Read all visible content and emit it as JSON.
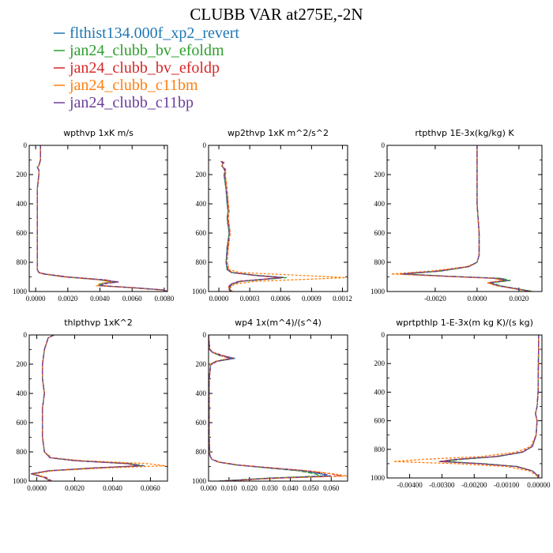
{
  "title": "CLUBB VAR at275E,-2N",
  "legend": [
    {
      "name": "flthist134.000f_xp2_revert",
      "color": "#1f77b4"
    },
    {
      "name": "jan24_clubb_bv_efoldm",
      "color": "#2ca02c"
    },
    {
      "name": "jan24_clubb_bv_efoldp",
      "color": "#d62728"
    },
    {
      "name": "jan24_clubb_c11bm",
      "color": "#ff7f0e"
    },
    {
      "name": "jan24_clubb_c11bp",
      "color": "#6a3d9a"
    }
  ],
  "chart_data": [
    {
      "type": "line",
      "title": "wpthvp   1xK m/s",
      "xlim": [
        -0.0004,
        0.0082
      ],
      "ylim": [
        1000,
        0
      ],
      "xticks": [
        "0.0000",
        "0.0020",
        "0.0040",
        "0.0060",
        "0.0080"
      ],
      "xtickvals": [
        0,
        0.002,
        0.004,
        0.006,
        0.008
      ],
      "yticks": [
        "0",
        "200",
        "400",
        "600",
        "800",
        "1000"
      ],
      "y": [
        0,
        100,
        140,
        150,
        170,
        200,
        300,
        500,
        700,
        820,
        850,
        870,
        880,
        900,
        920,
        935,
        945,
        960,
        975,
        990,
        1000
      ],
      "series": [
        {
          "name": "flthist134.000f_xp2_revert",
          "values": [
            0.0003,
            0.0003,
            0.0002,
            0.0001,
            0.0002,
            0.0002,
            0.0001,
            0.0001,
            0.0001,
            0.0001,
            0.0001,
            0.0002,
            0.0005,
            0.0019,
            0.0041,
            0.0049,
            0.0042,
            0.004,
            0.0062,
            0.008,
            0.0081
          ]
        },
        {
          "name": "jan24_clubb_bv_efoldm",
          "values": [
            0.0003,
            0.0003,
            0.0002,
            0.0001,
            0.0002,
            0.0002,
            0.0001,
            0.0001,
            0.0001,
            0.0001,
            0.0001,
            0.0002,
            0.0005,
            0.0018,
            0.004,
            0.0048,
            0.0041,
            0.0039,
            0.0061,
            0.0079,
            0.008
          ]
        },
        {
          "name": "jan24_clubb_bv_efoldp",
          "values": [
            0.0003,
            0.0003,
            0.0002,
            0.0001,
            0.0002,
            0.0002,
            0.0001,
            0.0001,
            0.0001,
            0.0001,
            0.0001,
            0.0002,
            0.0006,
            0.002,
            0.0043,
            0.0051,
            0.0044,
            0.0041,
            0.0063,
            0.008,
            0.0082
          ]
        },
        {
          "name": "jan24_clubb_c11bm",
          "values": [
            0.0003,
            0.0003,
            0.0002,
            0.0001,
            0.0002,
            0.0002,
            0.0001,
            0.0001,
            0.0001,
            0.0001,
            0.0001,
            0.0002,
            0.0004,
            0.0017,
            0.0039,
            0.0047,
            0.004,
            0.0038,
            0.006,
            0.0078,
            0.0079
          ]
        },
        {
          "name": "jan24_clubb_c11bp",
          "values": [
            0.0003,
            0.0003,
            0.0002,
            0.0001,
            0.0002,
            0.0002,
            0.0001,
            0.0001,
            0.0001,
            0.0001,
            0.0001,
            0.0002,
            0.0005,
            0.0019,
            0.0042,
            0.0052,
            0.0043,
            0.004,
            0.0062,
            0.008,
            0.0081
          ]
        }
      ]
    },
    {
      "type": "line",
      "title": "wp2thvp   1xK m^2/s^2",
      "xlim": [
        -0.0001,
        0.00125
      ],
      "ylim": [
        1000,
        0
      ],
      "xticks": [
        "0.0000",
        "0.0003",
        "0.0006",
        "0.0009",
        "0.0012"
      ],
      "xtickvals": [
        0,
        0.0003,
        0.0006,
        0.0009,
        0.0012
      ],
      "yticks": [
        "0",
        "200",
        "400",
        "600",
        "800",
        "1000"
      ],
      "y": [
        110,
        120,
        140,
        160,
        180,
        200,
        250,
        300,
        400,
        450,
        500,
        550,
        600,
        650,
        700,
        800,
        850,
        870,
        890,
        905,
        915,
        930,
        950,
        975,
        1000
      ],
      "series": [
        {
          "name": "flthist134.000f_xp2_revert",
          "values": [
            2e-05,
            4e-05,
            3e-05,
            5e-05,
            6e-05,
            5e-05,
            6e-05,
            7e-05,
            8e-05,
            9e-05,
            8e-05,
            9e-05,
            0.0001,
            9e-05,
            8e-05,
            7e-05,
            8e-05,
            0.00012,
            0.00035,
            0.00062,
            0.00045,
            0.0002,
            0.00012,
            0.0001,
            0.00012
          ]
        },
        {
          "name": "jan24_clubb_bv_efoldm",
          "values": [
            2e-05,
            4e-05,
            3e-05,
            5e-05,
            6e-05,
            5e-05,
            6e-05,
            7e-05,
            8e-05,
            9e-05,
            8e-05,
            9e-05,
            0.0001,
            9e-05,
            8e-05,
            7e-05,
            8e-05,
            0.00013,
            0.00038,
            0.00066,
            0.00048,
            0.00022,
            0.00013,
            0.0001,
            0.00012
          ]
        },
        {
          "name": "jan24_clubb_bv_efoldp",
          "values": [
            3e-05,
            5e-05,
            3e-05,
            6e-05,
            7e-05,
            6e-05,
            7e-05,
            8e-05,
            9e-05,
            0.0001,
            9e-05,
            0.0001,
            0.00011,
            0.0001,
            9e-05,
            8e-05,
            9e-05,
            0.00012,
            0.00034,
            0.0006,
            0.00044,
            0.00019,
            0.00011,
            9e-05,
            0.00011
          ]
        },
        {
          "name": "jan24_clubb_c11bm",
          "values": [
            2e-05,
            4e-05,
            3e-05,
            5e-05,
            6e-05,
            6e-05,
            7e-05,
            8e-05,
            9e-05,
            0.0001,
            9e-05,
            0.0001,
            0.00011,
            0.0001,
            9e-05,
            8e-05,
            0.0001,
            0.0002,
            0.0008,
            0.00123,
            0.0009,
            0.00035,
            0.00015,
            0.00011,
            0.00013
          ]
        },
        {
          "name": "jan24_clubb_c11bp",
          "values": [
            2e-05,
            4e-05,
            3e-05,
            5e-05,
            6e-05,
            5e-05,
            6e-05,
            7e-05,
            8e-05,
            9e-05,
            8e-05,
            9e-05,
            0.0001,
            9e-05,
            8e-05,
            7e-05,
            8e-05,
            0.00012,
            0.00036,
            0.00063,
            0.00046,
            0.00021,
            0.00012,
            0.0001,
            0.00012
          ]
        }
      ]
    },
    {
      "type": "line",
      "title": "rtpthvp   1E-3x(kg/kg) K",
      "xlim": [
        -0.0043,
        0.0031
      ],
      "ylim": [
        1000,
        0
      ],
      "xticks": [
        "-0.0020",
        "0.0000",
        "0.0020"
      ],
      "xtickvals": [
        -0.002,
        0,
        0.002
      ],
      "yticks": [
        "0",
        "200",
        "400",
        "600",
        "800",
        "1000"
      ],
      "y": [
        0,
        200,
        400,
        600,
        750,
        800,
        830,
        860,
        880,
        895,
        910,
        925,
        940,
        960,
        980,
        1000
      ],
      "series": [
        {
          "name": "flthist134.000f_xp2_revert",
          "values": [
            0.0,
            0.0,
            0.0,
            0.0001,
            0.0001,
            0.0,
            -0.0004,
            -0.0018,
            -0.0036,
            -0.0015,
            0.001,
            0.0014,
            0.0006,
            0.001,
            0.0018,
            0.0026
          ]
        },
        {
          "name": "jan24_clubb_bv_efoldm",
          "values": [
            0.0,
            0.0,
            0.0,
            0.0001,
            0.0001,
            0.0,
            -0.0004,
            -0.0017,
            -0.0035,
            -0.0014,
            0.0012,
            0.0016,
            0.0007,
            0.0011,
            0.0019,
            0.0027
          ]
        },
        {
          "name": "jan24_clubb_bv_efoldp",
          "values": [
            0.0,
            0.0,
            0.0,
            0.0001,
            0.0001,
            0.0,
            -0.0004,
            -0.0019,
            -0.0037,
            -0.0016,
            0.0009,
            0.0013,
            0.0005,
            0.001,
            0.0018,
            0.0026
          ]
        },
        {
          "name": "jan24_clubb_c11bm",
          "values": [
            0.0,
            0.0,
            0.0,
            0.0001,
            0.0001,
            0.0,
            -0.0005,
            -0.0022,
            -0.0041,
            -0.0018,
            0.0008,
            0.0012,
            0.0005,
            0.0009,
            0.0017,
            0.0025
          ]
        },
        {
          "name": "jan24_clubb_c11bp",
          "values": [
            0.0,
            0.0,
            0.0,
            0.0001,
            0.0001,
            0.0,
            -0.0004,
            -0.0018,
            -0.0036,
            -0.0015,
            0.0011,
            0.0015,
            0.0006,
            0.001,
            0.0018,
            0.0026
          ]
        }
      ]
    },
    {
      "type": "line",
      "title": "thlpthvp   1xK^2",
      "xlim": [
        -0.0004,
        0.0069
      ],
      "ylim": [
        1000,
        0
      ],
      "xticks": [
        "0.0000",
        "0.0020",
        "0.0040",
        "0.0060"
      ],
      "xtickvals": [
        0,
        0.002,
        0.004,
        0.006
      ],
      "yticks": [
        "0",
        "200",
        "400",
        "600",
        "800",
        "1000"
      ],
      "y": [
        0,
        20,
        100,
        200,
        300,
        400,
        500,
        600,
        700,
        800,
        840,
        860,
        880,
        895,
        910,
        930,
        950,
        975,
        1000
      ],
      "series": [
        {
          "name": "flthist134.000f_xp2_revert",
          "values": [
            0.0009,
            0.0006,
            0.0004,
            0.0003,
            0.0003,
            0.0004,
            0.0003,
            0.0003,
            0.0003,
            0.0004,
            0.0007,
            0.002,
            0.0048,
            0.0055,
            0.003,
            0.0006,
            -0.0003,
            0.0004,
            0.0007
          ]
        },
        {
          "name": "jan24_clubb_bv_efoldm",
          "values": [
            0.0009,
            0.0006,
            0.0004,
            0.0003,
            0.0003,
            0.0004,
            0.0003,
            0.0003,
            0.0003,
            0.0004,
            0.0007,
            0.0021,
            0.0049,
            0.0057,
            0.0031,
            0.0006,
            -0.0002,
            0.0004,
            0.0007
          ]
        },
        {
          "name": "jan24_clubb_bv_efoldp",
          "values": [
            0.0009,
            0.0006,
            0.0004,
            0.0003,
            0.0003,
            0.0004,
            0.0003,
            0.0003,
            0.0003,
            0.0004,
            0.0007,
            0.002,
            0.0047,
            0.0054,
            0.0029,
            0.0006,
            -0.0003,
            0.0005,
            0.0008
          ]
        },
        {
          "name": "jan24_clubb_c11bm",
          "values": [
            0.0009,
            0.0006,
            0.0004,
            0.0003,
            0.0003,
            0.0004,
            0.0003,
            0.0003,
            0.0003,
            0.0004,
            0.0008,
            0.0024,
            0.0058,
            0.0068,
            0.0036,
            0.0008,
            -0.0001,
            0.0004,
            0.0007
          ]
        },
        {
          "name": "jan24_clubb_c11bp",
          "values": [
            0.0009,
            0.0006,
            0.0004,
            0.0003,
            0.0003,
            0.0004,
            0.0003,
            0.0003,
            0.0003,
            0.0004,
            0.0007,
            0.002,
            0.0048,
            0.0056,
            0.003,
            0.0006,
            -0.0003,
            0.0004,
            0.0007
          ]
        }
      ]
    },
    {
      "type": "line",
      "title": "wp4   1x(m^4)/(s^4)",
      "xlim": [
        0,
        0.068
      ],
      "ylim": [
        1000,
        0
      ],
      "xticks": [
        "0.000",
        "0.010",
        "0.020",
        "0.030",
        "0.040",
        "0.050",
        "0.060"
      ],
      "xtickvals": [
        0,
        0.01,
        0.02,
        0.03,
        0.04,
        0.05,
        0.06
      ],
      "yticks": [
        "0",
        "200",
        "400",
        "600",
        "800",
        "1000"
      ],
      "y": [
        0,
        100,
        120,
        140,
        160,
        180,
        200,
        300,
        500,
        700,
        820,
        850,
        870,
        890,
        910,
        930,
        950,
        965,
        980,
        1000
      ],
      "series": [
        {
          "name": "flthist134.000f_xp2_revert",
          "values": [
            0.0,
            0.0005,
            0.002,
            0.006,
            0.013,
            0.004,
            0.001,
            0.0003,
            0.0003,
            0.0003,
            0.0005,
            0.0015,
            0.005,
            0.014,
            0.03,
            0.046,
            0.055,
            0.058,
            0.03,
            0.005
          ]
        },
        {
          "name": "jan24_clubb_bv_efoldm",
          "values": [
            0.0,
            0.0005,
            0.002,
            0.005,
            0.011,
            0.0035,
            0.001,
            0.0003,
            0.0003,
            0.0003,
            0.0005,
            0.0015,
            0.005,
            0.0135,
            0.029,
            0.044,
            0.052,
            0.055,
            0.028,
            0.005
          ]
        },
        {
          "name": "jan24_clubb_bv_efoldp",
          "values": [
            0.0,
            0.0006,
            0.0025,
            0.007,
            0.012,
            0.0045,
            0.0012,
            0.0003,
            0.0003,
            0.0003,
            0.0006,
            0.0017,
            0.0055,
            0.015,
            0.032,
            0.049,
            0.06,
            0.065,
            0.033,
            0.006
          ]
        },
        {
          "name": "jan24_clubb_c11bm",
          "values": [
            0.0,
            0.0005,
            0.002,
            0.0055,
            0.01,
            0.0035,
            0.001,
            0.0003,
            0.0003,
            0.0003,
            0.0005,
            0.0016,
            0.0052,
            0.0145,
            0.031,
            0.048,
            0.061,
            0.068,
            0.034,
            0.006
          ]
        },
        {
          "name": "jan24_clubb_c11bp",
          "values": [
            0.0,
            0.0005,
            0.002,
            0.006,
            0.011,
            0.004,
            0.001,
            0.0003,
            0.0003,
            0.0003,
            0.0005,
            0.0015,
            0.005,
            0.014,
            0.03,
            0.047,
            0.056,
            0.06,
            0.031,
            0.0055
          ]
        }
      ]
    },
    {
      "type": "line",
      "title": "wprtpthlp   1-E-3x(m kg K)/(s kg)",
      "xlim": [
        -0.0047,
        0.0001
      ],
      "ylim": [
        1000,
        0
      ],
      "xticks": [
        "-0.00400",
        "-0.00300",
        "-0.00200",
        "-0.00100",
        "0.00000"
      ],
      "xtickvals": [
        -0.004,
        -0.003,
        -0.002,
        -0.001,
        0
      ],
      "yticks": [
        "0",
        "200",
        "400",
        "600",
        "800",
        "1000"
      ],
      "y": [
        0,
        200,
        400,
        500,
        550,
        600,
        700,
        780,
        820,
        850,
        870,
        885,
        900,
        920,
        950,
        980,
        1000
      ],
      "series": [
        {
          "name": "flthist134.000f_xp2_revert",
          "values": [
            0.0,
            -1e-05,
            -2e-05,
            -5e-05,
            -0.0001,
            -5e-05,
            -8e-05,
            -0.0002,
            -0.0005,
            -0.0013,
            -0.0025,
            -0.003,
            -0.0018,
            -0.0007,
            -0.0002,
            -5e-05,
            0.0
          ]
        },
        {
          "name": "jan24_clubb_bv_efoldm",
          "values": [
            0.0,
            -1e-05,
            -2e-05,
            -5e-05,
            -0.0001,
            -5e-05,
            -8e-05,
            -0.0002,
            -0.0005,
            -0.00125,
            -0.0024,
            -0.0029,
            -0.0017,
            -0.00065,
            -0.0002,
            -5e-05,
            0.0
          ]
        },
        {
          "name": "jan24_clubb_bv_efoldp",
          "values": [
            0.0,
            -1e-05,
            -2e-05,
            -5e-05,
            -0.0001,
            -5e-05,
            -8e-05,
            -0.0002,
            -0.00055,
            -0.00135,
            -0.0026,
            -0.0031,
            -0.0019,
            -0.0007,
            -0.0002,
            -5e-05,
            0.0
          ]
        },
        {
          "name": "jan24_clubb_c11bm",
          "values": [
            0.0,
            -1e-05,
            -2e-05,
            -5e-05,
            -0.0001,
            -5e-05,
            -8e-05,
            -0.00025,
            -0.0007,
            -0.0018,
            -0.0036,
            -0.0045,
            -0.0026,
            -0.001,
            -0.0003,
            -8e-05,
            0.0
          ]
        },
        {
          "name": "jan24_clubb_c11bp",
          "values": [
            0.0,
            -1e-05,
            -2e-05,
            -5e-05,
            -0.0001,
            -5e-05,
            -8e-05,
            -0.0002,
            -0.0005,
            -0.0013,
            -0.00255,
            -0.00305,
            -0.0018,
            -0.0007,
            -0.0002,
            -5e-05,
            0.0
          ]
        }
      ]
    }
  ]
}
